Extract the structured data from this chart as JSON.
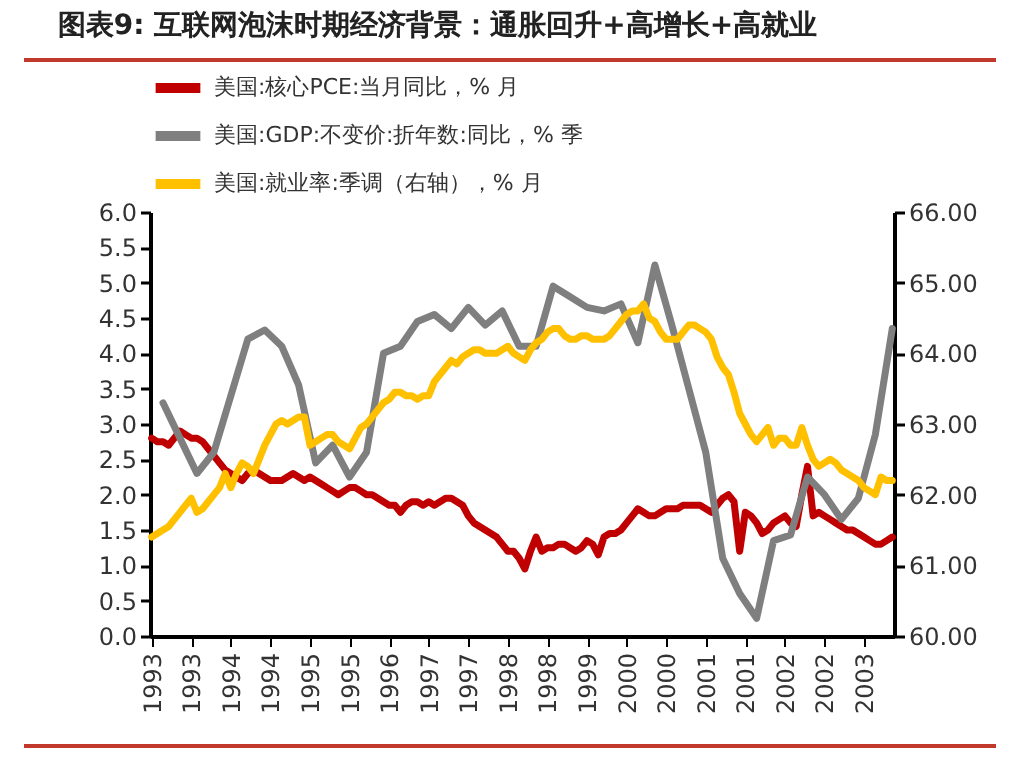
{
  "chart_data": {
    "type": "line",
    "title": "图表9:  互联网泡沫时期经济背景：通胀回升+高增长+高就业",
    "categories": [
      "1993",
      null,
      null,
      null,
      null,
      null,
      null,
      "1993",
      null,
      null,
      null,
      null,
      null,
      null,
      "1994",
      null,
      null,
      null,
      null,
      null,
      null,
      "1994",
      null,
      null,
      null,
      null,
      null,
      null,
      "1995",
      null,
      null,
      null,
      null,
      null,
      null,
      "1995",
      null,
      null,
      null,
      null,
      null,
      null,
      "1996",
      null,
      null,
      null,
      null,
      null,
      null,
      "1997",
      null,
      null,
      null,
      null,
      null,
      null,
      "1997",
      null,
      null,
      null,
      null,
      null,
      null,
      "1998",
      null,
      null,
      null,
      null,
      null,
      null,
      "1998",
      null,
      null,
      null,
      null,
      null,
      null,
      "1999",
      null,
      null,
      null,
      null,
      null,
      null,
      "2000",
      null,
      null,
      null,
      null,
      null,
      null,
      "2000",
      null,
      null,
      null,
      null,
      null,
      null,
      "2001",
      null,
      null,
      null,
      null,
      null,
      null,
      "2001",
      null,
      null,
      null,
      null,
      null,
      null,
      "2002",
      null,
      null,
      null,
      null,
      null,
      null,
      "2002",
      null,
      null,
      null,
      null,
      null,
      null,
      "2003",
      null,
      null,
      null,
      null,
      null
    ],
    "series": [
      {
        "name": "美国:核心PCE:当月同比，% 月",
        "color": "#c00000",
        "values": [
          2.8,
          2.75,
          2.75,
          2.7,
          2.8,
          2.9,
          2.85,
          2.8,
          2.8,
          2.75,
          2.65,
          2.55,
          2.45,
          2.35,
          2.3,
          2.25,
          2.2,
          2.3,
          2.35,
          2.3,
          2.25,
          2.2,
          2.2,
          2.2,
          2.25,
          2.3,
          2.25,
          2.2,
          2.25,
          2.2,
          2.15,
          2.1,
          2.05,
          2.0,
          2.05,
          2.1,
          2.1,
          2.05,
          2.0,
          2.0,
          1.95,
          1.9,
          1.85,
          1.85,
          1.75,
          1.85,
          1.9,
          1.9,
          1.85,
          1.9,
          1.85,
          1.9,
          1.95,
          1.95,
          1.9,
          1.85,
          1.7,
          1.6,
          1.55,
          1.5,
          1.45,
          1.4,
          1.3,
          1.2,
          1.2,
          1.1,
          0.95,
          1.2,
          1.4,
          1.2,
          1.25,
          1.25,
          1.3,
          1.3,
          1.25,
          1.2,
          1.25,
          1.35,
          1.3,
          1.15,
          1.4,
          1.45,
          1.45,
          1.5,
          1.6,
          1.7,
          1.8,
          1.75,
          1.7,
          1.7,
          1.75,
          1.8,
          1.8,
          1.8,
          1.85,
          1.85,
          1.85,
          1.85,
          1.8,
          1.75,
          1.85,
          1.95,
          2.0,
          1.9,
          1.2,
          1.75,
          1.7,
          1.6,
          1.45,
          1.5,
          1.6,
          1.65,
          1.7,
          1.6,
          1.55,
          2.0,
          2.4,
          1.7,
          1.75,
          1.7,
          1.65,
          1.6,
          1.55,
          1.5,
          1.5,
          1.45,
          1.4,
          1.35,
          1.3,
          1.3,
          1.35,
          1.4
        ]
      },
      {
        "name": "美国:GDP:不变价:折年数:同比，% 季",
        "color": "#7f7f7f",
        "values": [
          null,
          null,
          3.3,
          null,
          null,
          2.8,
          null,
          null,
          2.3,
          null,
          null,
          2.6,
          null,
          null,
          3.4,
          null,
          null,
          4.2,
          null,
          null,
          4.33,
          null,
          null,
          4.1,
          null,
          null,
          3.55,
          null,
          null,
          2.45,
          null,
          null,
          2.7,
          null,
          null,
          2.25,
          null,
          null,
          2.6,
          null,
          null,
          4.0,
          null,
          null,
          4.1,
          null,
          null,
          4.45,
          null,
          null,
          4.55,
          null,
          null,
          4.35,
          null,
          null,
          4.65,
          null,
          null,
          4.4,
          null,
          null,
          4.6,
          null,
          null,
          4.1,
          null,
          null,
          4.1,
          null,
          null,
          4.95,
          null,
          null,
          4.8,
          null,
          null,
          4.65,
          null,
          null,
          4.6,
          null,
          null,
          4.7,
          null,
          null,
          4.15,
          null,
          null,
          5.25,
          null,
          null,
          4.4,
          null,
          null,
          3.5,
          null,
          null,
          2.6,
          null,
          null,
          1.1,
          null,
          null,
          0.6,
          null,
          null,
          0.25,
          null,
          null,
          1.35,
          null,
          null,
          1.43,
          null,
          null,
          2.25,
          null,
          null,
          2.0,
          null,
          null,
          1.65,
          null,
          null,
          1.95,
          null,
          null,
          2.85,
          null,
          null,
          4.35
        ]
      },
      {
        "name": "美国:就业率:季调（右轴），% 月",
        "color": "#ffc000",
        "axis": "y2",
        "values": [
          61.4,
          61.45,
          61.5,
          61.55,
          61.65,
          61.75,
          61.85,
          61.95,
          61.75,
          61.8,
          61.9,
          62.0,
          62.1,
          62.3,
          62.1,
          62.3,
          62.45,
          62.4,
          62.3,
          62.5,
          62.7,
          62.85,
          63.0,
          63.05,
          63.0,
          63.05,
          63.1,
          63.1,
          62.7,
          62.75,
          62.8,
          62.85,
          62.85,
          62.75,
          62.7,
          62.65,
          62.8,
          62.95,
          63.0,
          63.1,
          63.2,
          63.3,
          63.35,
          63.45,
          63.45,
          63.4,
          63.4,
          63.35,
          63.4,
          63.4,
          63.6,
          63.7,
          63.8,
          63.9,
          63.85,
          63.95,
          64.0,
          64.05,
          64.05,
          64.0,
          64.0,
          64.0,
          64.05,
          64.1,
          64.0,
          63.95,
          63.9,
          64.05,
          64.15,
          64.2,
          64.3,
          64.35,
          64.35,
          64.25,
          64.2,
          64.2,
          64.25,
          64.25,
          64.2,
          64.2,
          64.2,
          64.25,
          64.35,
          64.45,
          64.55,
          64.6,
          64.6,
          64.7,
          64.5,
          64.45,
          64.3,
          64.2,
          64.2,
          64.2,
          64.3,
          64.4,
          64.4,
          64.35,
          64.3,
          64.2,
          63.95,
          63.8,
          63.7,
          63.45,
          63.15,
          63.0,
          62.85,
          62.75,
          62.85,
          62.95,
          62.7,
          62.8,
          62.8,
          62.7,
          62.7,
          62.95,
          62.7,
          62.5,
          62.4,
          62.45,
          62.5,
          62.45,
          62.35,
          62.3,
          62.25,
          62.2,
          62.1,
          62.05,
          62.0,
          62.25,
          62.2,
          62.2
        ]
      }
    ],
    "ylim": [
      0,
      6
    ],
    "yticks": [
      {
        "value": 0,
        "label": "0.0"
      },
      {
        "value": 0.5,
        "label": "0.5"
      },
      {
        "value": 1,
        "label": "1.0"
      },
      {
        "value": 1.5,
        "label": "1.5"
      },
      {
        "value": 2,
        "label": "2.0"
      },
      {
        "value": 2.5,
        "label": "2.5"
      },
      {
        "value": 3,
        "label": "3.0"
      },
      {
        "value": 3.5,
        "label": "3.5"
      },
      {
        "value": 4,
        "label": "4.0"
      },
      {
        "value": 4.5,
        "label": "4.5"
      },
      {
        "value": 5,
        "label": "5.0"
      },
      {
        "value": 5.5,
        "label": "5.5"
      },
      {
        "value": 6,
        "label": "6.0"
      }
    ],
    "y2lim": [
      60,
      66
    ],
    "y2ticks": [
      {
        "value": 60,
        "label": "60.00"
      },
      {
        "value": 61,
        "label": "61.00"
      },
      {
        "value": 62,
        "label": "62.00"
      },
      {
        "value": 63,
        "label": "63.00"
      },
      {
        "value": 64,
        "label": "64.00"
      },
      {
        "value": 65,
        "label": "65.00"
      },
      {
        "value": 66,
        "label": "66.00"
      }
    ],
    "legend": "top"
  }
}
